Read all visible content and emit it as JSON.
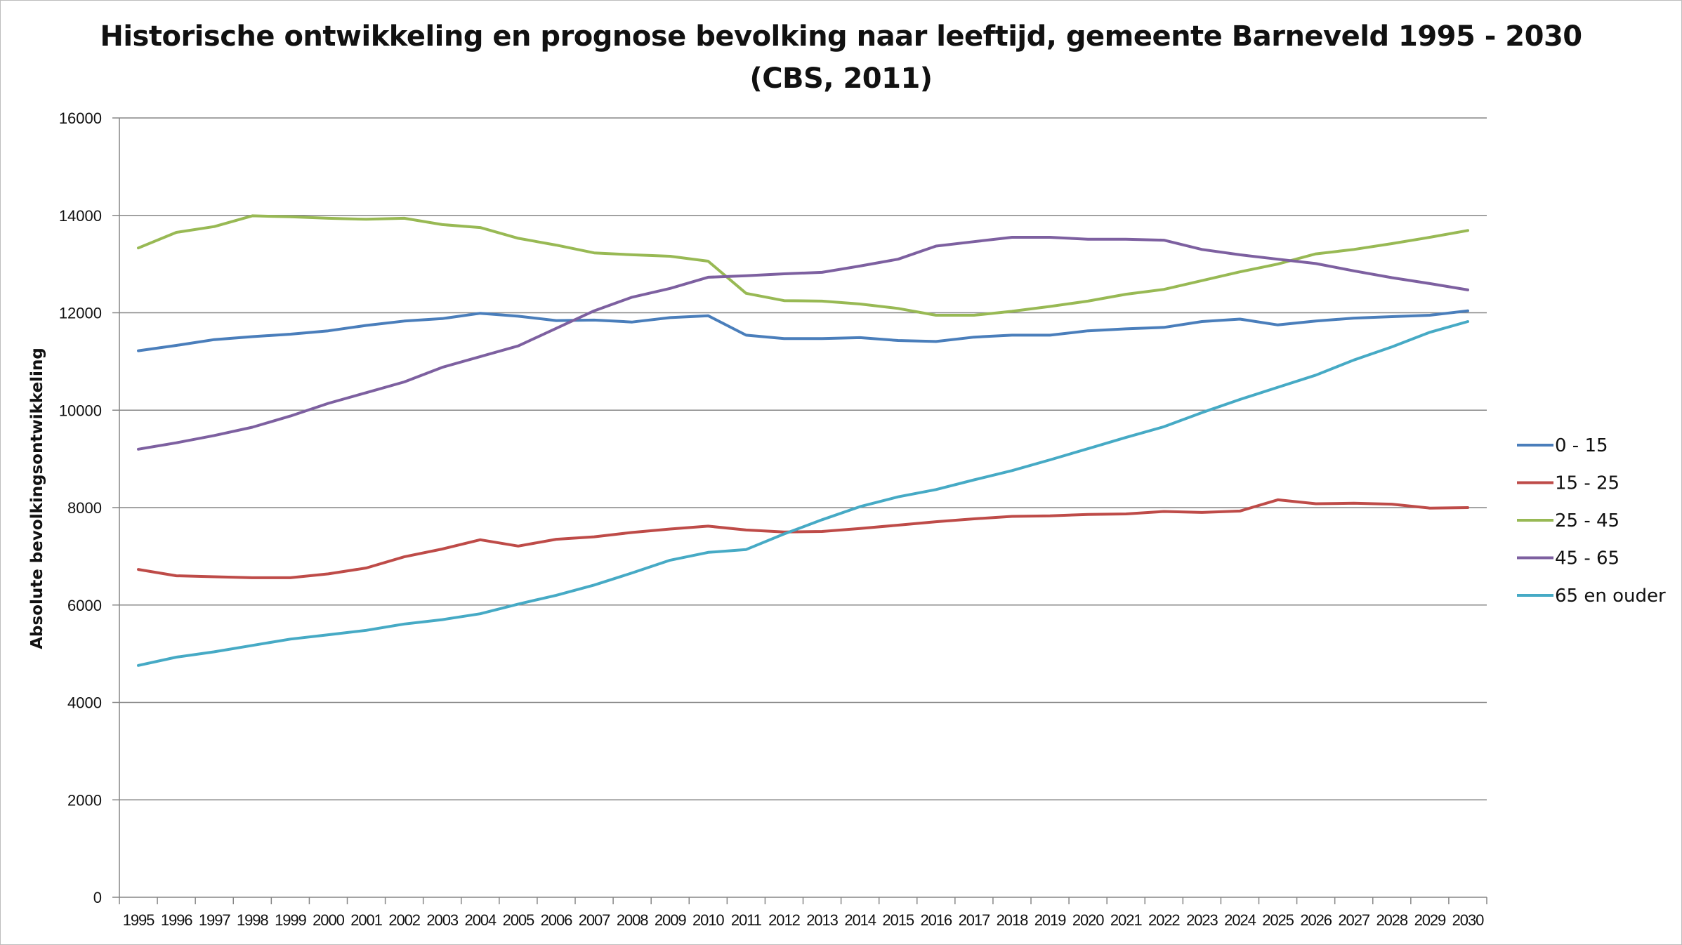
{
  "chart_data": {
    "type": "line",
    "title": "Historische ontwikkeling  en prognose bevolking naar leeftijd, gemeente Barneveld 1995 - 2030",
    "subtitle": "(CBS, 2011)",
    "xlabel": "",
    "ylabel": "Absolute bevolkingsontwikkeling",
    "ylim": [
      0,
      16000
    ],
    "yticks": [
      "0",
      "2000",
      "4000",
      "6000",
      "8000",
      "10000",
      "12000",
      "14000",
      "16000"
    ],
    "grid": "horizontal",
    "legend_position": "right",
    "categories": [
      "1995",
      "1996",
      "1997",
      "1998",
      "1999",
      "2000",
      "2001",
      "2002",
      "2003",
      "2004",
      "2005",
      "2006",
      "2007",
      "2008",
      "2009",
      "2010",
      "2011",
      "2012",
      "2013",
      "2014",
      "2015",
      "2016",
      "2017",
      "2018",
      "2019",
      "2020",
      "2021",
      "2022",
      "2023",
      "2024",
      "2025",
      "2026",
      "2027",
      "2028",
      "2029",
      "2030"
    ],
    "series": [
      {
        "name": "0 - 15",
        "color": "#4a7ebb",
        "values": [
          11220,
          11330,
          11450,
          11510,
          11560,
          11630,
          11740,
          11830,
          11880,
          11990,
          11930,
          11840,
          11850,
          11810,
          11900,
          11940,
          11540,
          11470,
          11470,
          11490,
          11430,
          11410,
          11500,
          11540,
          11540,
          11630,
          11670,
          11700,
          11820,
          11870,
          11750,
          11830,
          11890,
          11920,
          11950,
          12040
        ]
      },
      {
        "name": "15 - 25",
        "color": "#be4b48",
        "values": [
          6730,
          6600,
          6580,
          6560,
          6560,
          6640,
          6760,
          6990,
          7150,
          7340,
          7210,
          7350,
          7400,
          7490,
          7560,
          7620,
          7540,
          7500,
          7510,
          7570,
          7640,
          7710,
          7770,
          7820,
          7830,
          7860,
          7870,
          7920,
          7900,
          7930,
          8160,
          8080,
          8090,
          8070,
          7990,
          8000
        ]
      },
      {
        "name": "25 - 45",
        "color": "#98b954",
        "values": [
          13330,
          13650,
          13770,
          13990,
          13970,
          13940,
          13920,
          13940,
          13810,
          13750,
          13530,
          13390,
          13230,
          13190,
          13160,
          13060,
          12400,
          12250,
          12240,
          12180,
          12090,
          11950,
          11950,
          12030,
          12130,
          12240,
          12380,
          12480,
          12660,
          12840,
          13000,
          13210,
          13300,
          13420,
          13550,
          13690
        ]
      },
      {
        "name": "45 - 65",
        "color": "#7d60a0",
        "values": [
          9200,
          9330,
          9480,
          9650,
          9880,
          10140,
          10360,
          10580,
          10880,
          11100,
          11320,
          11680,
          12040,
          12320,
          12500,
          12730,
          12760,
          12800,
          12830,
          12960,
          13100,
          13370,
          13460,
          13550,
          13550,
          13510,
          13510,
          13490,
          13300,
          13190,
          13100,
          13010,
          12860,
          12720,
          12600,
          12470
        ]
      },
      {
        "name": "65 en ouder",
        "color": "#46aac5",
        "values": [
          4760,
          4930,
          5040,
          5170,
          5300,
          5390,
          5480,
          5610,
          5700,
          5820,
          6020,
          6200,
          6410,
          6660,
          6920,
          7080,
          7140,
          7460,
          7750,
          8020,
          8220,
          8370,
          8570,
          8760,
          8980,
          9210,
          9440,
          9660,
          9950,
          10220,
          10470,
          10720,
          11030,
          11300,
          11600,
          11820
        ]
      }
    ]
  }
}
